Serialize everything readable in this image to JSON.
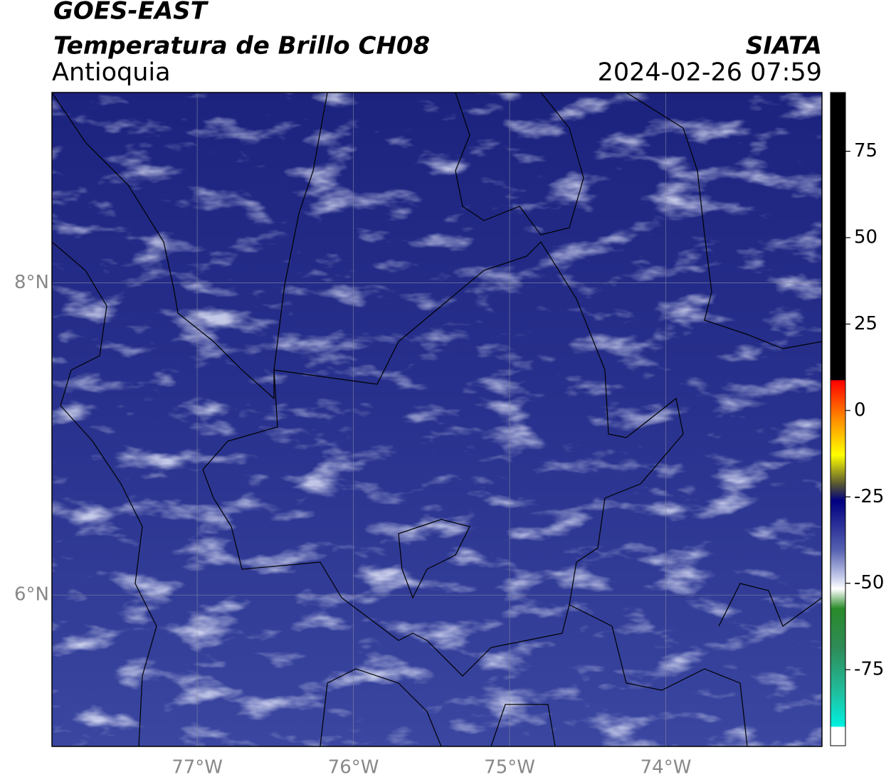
{
  "header": {
    "title": "GOES-EAST",
    "subtitle": "Temperatura de Brillo CH08",
    "region": "Antioquia",
    "agency": "SIATA",
    "datetime": "2024-02-26 07:59"
  },
  "map": {
    "xlim": [
      -77.93,
      -73
    ],
    "ylim": [
      5.03,
      9.22
    ],
    "xticks": [
      {
        "value": -77,
        "label": "77°W"
      },
      {
        "value": -76,
        "label": "76°W"
      },
      {
        "value": -75,
        "label": "75°W"
      },
      {
        "value": -74,
        "label": "74°W"
      }
    ],
    "yticks": [
      {
        "value": 6,
        "label": "6°N"
      },
      {
        "value": 8,
        "label": "8°N"
      }
    ],
    "grid": true
  },
  "colorbar": {
    "lim": [
      -97,
      92
    ],
    "ticks": [
      -75,
      -50,
      -25,
      0,
      25,
      50,
      75
    ]
  }
}
